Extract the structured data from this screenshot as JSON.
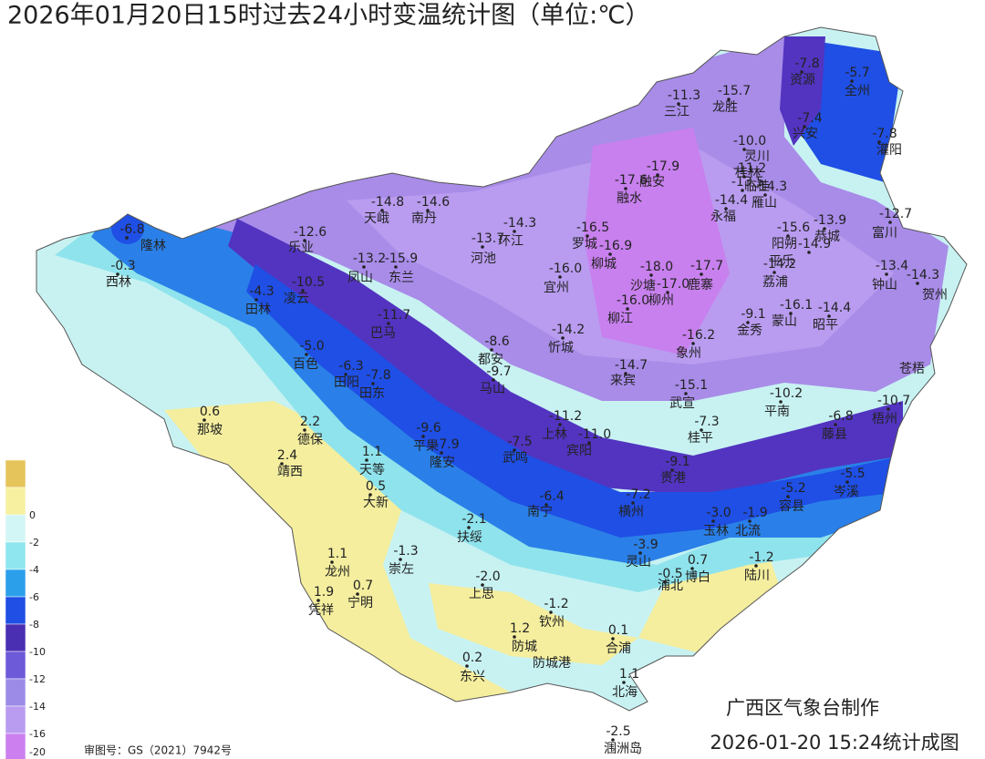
{
  "header": {
    "title": "2026年01月20日15时过去24小时变温统计图（单位:℃）"
  },
  "legend": {
    "colors": [
      "#e6c45c",
      "#f6f0a0",
      "#d2f6f6",
      "#8fe6ee",
      "#2c9fea",
      "#1f4fe4",
      "#4a2fb2",
      "#6c5ad8",
      "#9c8ce8",
      "#b99cf0",
      "#cc80f0"
    ],
    "ticks": [
      0,
      -2,
      -4,
      -6,
      -8,
      -10,
      -12,
      -14,
      -16,
      -20
    ]
  },
  "stations": [
    {
      "name": "资源",
      "value": -7.8
    },
    {
      "name": "全州",
      "value": -5.7
    },
    {
      "name": "三江",
      "value": -11.3
    },
    {
      "name": "龙胜",
      "value": -15.7
    },
    {
      "name": "兴安",
      "value": -7.4
    },
    {
      "name": "灌阳",
      "value": -7.8
    },
    {
      "name": "灵川",
      "value": -10.0,
      "value_label": "-10.0"
    },
    {
      "name": "桂林",
      "value": -11.2
    },
    {
      "name": "临桂",
      "value": -13.5
    },
    {
      "name": "融安",
      "value": -17.9
    },
    {
      "name": "融水",
      "value": -17.6
    },
    {
      "name": "天峨",
      "value": -14.8
    },
    {
      "name": "南丹",
      "value": -14.6
    },
    {
      "name": "永福",
      "value": -14.4
    },
    {
      "name": "雁山",
      "value": -14.3
    },
    {
      "name": "乐业",
      "value": -12.6
    },
    {
      "name": "罗城",
      "value": -16.5
    },
    {
      "name": "环江",
      "value": -14.3
    },
    {
      "name": "河池",
      "value": -13.7
    },
    {
      "name": "阳朔",
      "value": -15.6
    },
    {
      "name": "恭城",
      "value": -13.9
    },
    {
      "name": "富川",
      "value": -12.7
    },
    {
      "name": "平乐",
      "value": -14.9
    },
    {
      "name": "荔浦",
      "value": -14.2
    },
    {
      "name": "凤山",
      "value": -13.2
    },
    {
      "name": "东兰",
      "value": -15.9
    },
    {
      "name": "柳城",
      "value": -16.9
    },
    {
      "name": "宜州",
      "value": -16.0,
      "value_label": "-16.0"
    },
    {
      "name": "沙塘",
      "value": -18.0,
      "value_label": "-18.0"
    },
    {
      "name": "鹿寨",
      "value": -17.7
    },
    {
      "name": "柳州",
      "value": -17.0,
      "value_label": "-17.0"
    },
    {
      "name": "钟山",
      "value": -13.4
    },
    {
      "name": "贺州",
      "value": -14.3
    },
    {
      "name": "西林",
      "value": -0.3
    },
    {
      "name": "隆林",
      "value": -6.8
    },
    {
      "name": "田林",
      "value": -4.3
    },
    {
      "name": "凌云",
      "value": -10.5
    },
    {
      "name": "柳江",
      "value": -16.0,
      "value_label": "-16.0"
    },
    {
      "name": "蒙山",
      "value": -16.1
    },
    {
      "name": "昭平",
      "value": -14.4
    },
    {
      "name": "金秀",
      "value": -9.1
    },
    {
      "name": "巴马",
      "value": -11.7
    },
    {
      "name": "忻城",
      "value": -14.2
    },
    {
      "name": "象州",
      "value": -16.2
    },
    {
      "name": "百色",
      "value": -5.0,
      "value_label": "-5.0"
    },
    {
      "name": "都安",
      "value": -8.6
    },
    {
      "name": "马山",
      "value": -9.7
    },
    {
      "name": "来宾",
      "value": -14.7
    },
    {
      "name": "苍梧"
    },
    {
      "name": "田阳",
      "value": -6.3
    },
    {
      "name": "田东",
      "value": -7.8
    },
    {
      "name": "武宣",
      "value": -15.1
    },
    {
      "name": "平南",
      "value": -10.2
    },
    {
      "name": "梧州",
      "value": -10.7
    },
    {
      "name": "上林",
      "value": -11.2
    },
    {
      "name": "宾阳",
      "value": -11.0,
      "value_label": "-11.0"
    },
    {
      "name": "平果",
      "value": -9.6
    },
    {
      "name": "隆安",
      "value": -7.9
    },
    {
      "name": "武鸣",
      "value": -7.5
    },
    {
      "name": "桂平",
      "value": -7.3
    },
    {
      "name": "藤县",
      "value": -6.8
    },
    {
      "name": "那坡",
      "value": 0.6
    },
    {
      "name": "德保",
      "value": 2.2
    },
    {
      "name": "靖西",
      "value": 2.4
    },
    {
      "name": "天等",
      "value": 1.1
    },
    {
      "name": "大新",
      "value": 0.5
    },
    {
      "name": "贵港",
      "value": -9.1
    },
    {
      "name": "岑溪",
      "value": -5.5
    },
    {
      "name": "南宁",
      "value": -6.4
    },
    {
      "name": "横州",
      "value": -7.2
    },
    {
      "name": "容县",
      "value": -5.2
    },
    {
      "name": "玉林",
      "value": -3.0,
      "value_label": "-3.0"
    },
    {
      "name": "北流",
      "value": -1.9
    },
    {
      "name": "扶绥",
      "value": -2.1
    },
    {
      "name": "崇左",
      "value": -1.3
    },
    {
      "name": "灵山",
      "value": -3.9
    },
    {
      "name": "龙州",
      "value": 1.1
    },
    {
      "name": "宁明",
      "value": 0.7
    },
    {
      "name": "凭祥",
      "value": 1.9
    },
    {
      "name": "浦北",
      "value": -0.5
    },
    {
      "name": "博白",
      "value": 0.7
    },
    {
      "name": "陆川",
      "value": -1.2
    },
    {
      "name": "上思",
      "value": -2.0,
      "value_label": "-2.0"
    },
    {
      "name": "钦州",
      "value": -1.2
    },
    {
      "name": "防城",
      "value": 1.2
    },
    {
      "name": "防城港"
    },
    {
      "name": "合浦",
      "value": 0.1
    },
    {
      "name": "东兴",
      "value": 0.2
    },
    {
      "name": "北海",
      "value": 1.1
    },
    {
      "name": "涠洲岛",
      "value": -2.5
    }
  ],
  "footer": {
    "approval": "审图号：GS（2021）7942号",
    "maker": "广西区气象台制作",
    "timestamp": "2026-01-20 15:24统计成图"
  }
}
